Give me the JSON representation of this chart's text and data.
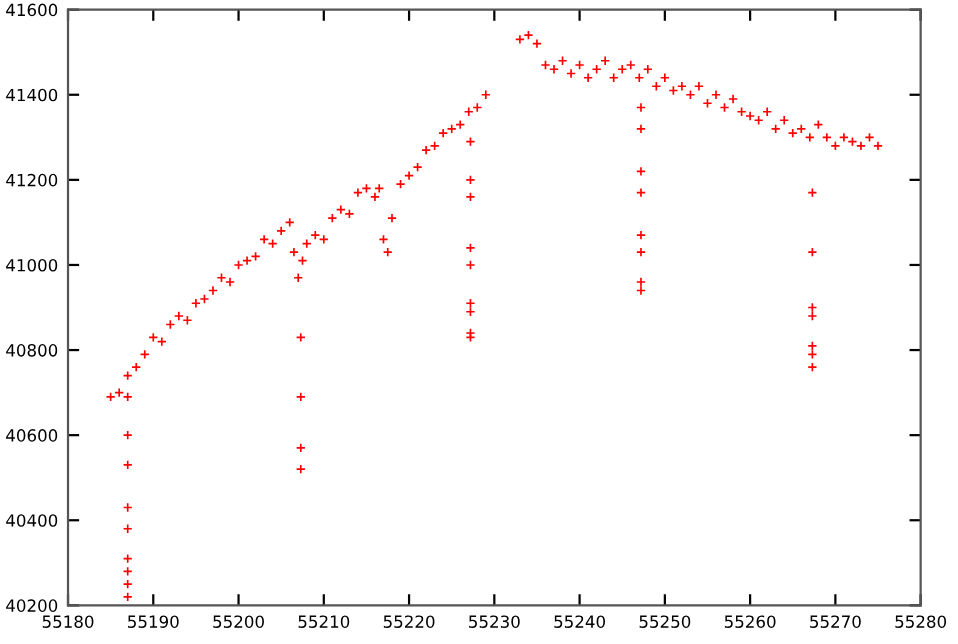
{
  "chart_data": {
    "type": "scatter",
    "marker": "cross",
    "grid": false,
    "xlim": [
      55180,
      55280
    ],
    "xticks": [
      55180,
      55190,
      55200,
      55210,
      55220,
      55230,
      55240,
      55250,
      55260,
      55270,
      55280
    ],
    "ylim": [
      40200,
      41600
    ],
    "yticks": [
      40200,
      40400,
      40600,
      40800,
      41000,
      41200,
      41400,
      41600
    ],
    "series": [
      {
        "color": "#ff0000",
        "x": [
          55185,
          55186,
          55187,
          55188,
          55189,
          55190,
          55191,
          55192,
          55193,
          55194,
          55195,
          55196,
          55197,
          55198,
          55199,
          55200,
          55201,
          55202,
          55203,
          55204,
          55205,
          55206,
          55206.5,
          55207,
          55207.5,
          55208,
          55209,
          55210,
          55211,
          55212,
          55213,
          55214,
          55215,
          55216,
          55216.5,
          55217,
          55217.5,
          55218,
          55219,
          55220,
          55221,
          55222,
          55223,
          55224,
          55225,
          55226,
          55227,
          55228,
          55229,
          55187,
          55187,
          55187,
          55187,
          55187,
          55187,
          55187,
          55187,
          55187,
          55207.3,
          55207.3,
          55207.3,
          55207.3,
          55227.2,
          55227.2,
          55227.2,
          55227.2,
          55227.2,
          55227.2,
          55227.2,
          55227.2,
          55227.2,
          55233,
          55234,
          55235,
          55236,
          55237,
          55238,
          55239,
          55240,
          55241,
          55242,
          55243,
          55244,
          55245,
          55246,
          55247,
          55248,
          55249,
          55250,
          55251,
          55252,
          55253,
          55254,
          55255,
          55256,
          55257,
          55258,
          55259,
          55260,
          55261,
          55262,
          55263,
          55264,
          55265,
          55266,
          55267,
          55268,
          55269,
          55270,
          55271,
          55272,
          55273,
          55274,
          55275,
          55247.2,
          55247.2,
          55247.2,
          55247.2,
          55247.2,
          55247.2,
          55247.2,
          55247.2,
          55267.3,
          55267.3,
          55267.3,
          55267.3,
          55267.3,
          55267.3,
          55267.3
        ],
        "values": [
          40690,
          40700,
          40740,
          40760,
          40790,
          40830,
          40820,
          40860,
          40880,
          40870,
          40910,
          40920,
          40940,
          40970,
          40960,
          41000,
          41010,
          41020,
          41060,
          41050,
          41080,
          41100,
          41030,
          40970,
          41010,
          41050,
          41070,
          41060,
          41110,
          41130,
          41120,
          41170,
          41180,
          41160,
          41180,
          41060,
          41030,
          41110,
          41190,
          41210,
          41230,
          41270,
          41280,
          41310,
          41320,
          41330,
          41360,
          41370,
          41400,
          40690,
          40600,
          40530,
          40430,
          40380,
          40310,
          40280,
          40250,
          40220,
          40830,
          40690,
          40570,
          40520,
          41290,
          41200,
          41160,
          41040,
          41000,
          40910,
          40890,
          40840,
          40830,
          41530,
          41540,
          41520,
          41470,
          41460,
          41480,
          41450,
          41470,
          41440,
          41460,
          41480,
          41440,
          41460,
          41470,
          41440,
          41460,
          41420,
          41440,
          41410,
          41420,
          41400,
          41420,
          41380,
          41400,
          41370,
          41390,
          41360,
          41350,
          41340,
          41360,
          41320,
          41340,
          41310,
          41320,
          41300,
          41330,
          41300,
          41280,
          41300,
          41290,
          41280,
          41300,
          41280,
          41370,
          41320,
          41220,
          41170,
          41070,
          41030,
          40960,
          40940,
          41170,
          41030,
          40900,
          40880,
          40810,
          40790,
          40760
        ]
      }
    ]
  }
}
